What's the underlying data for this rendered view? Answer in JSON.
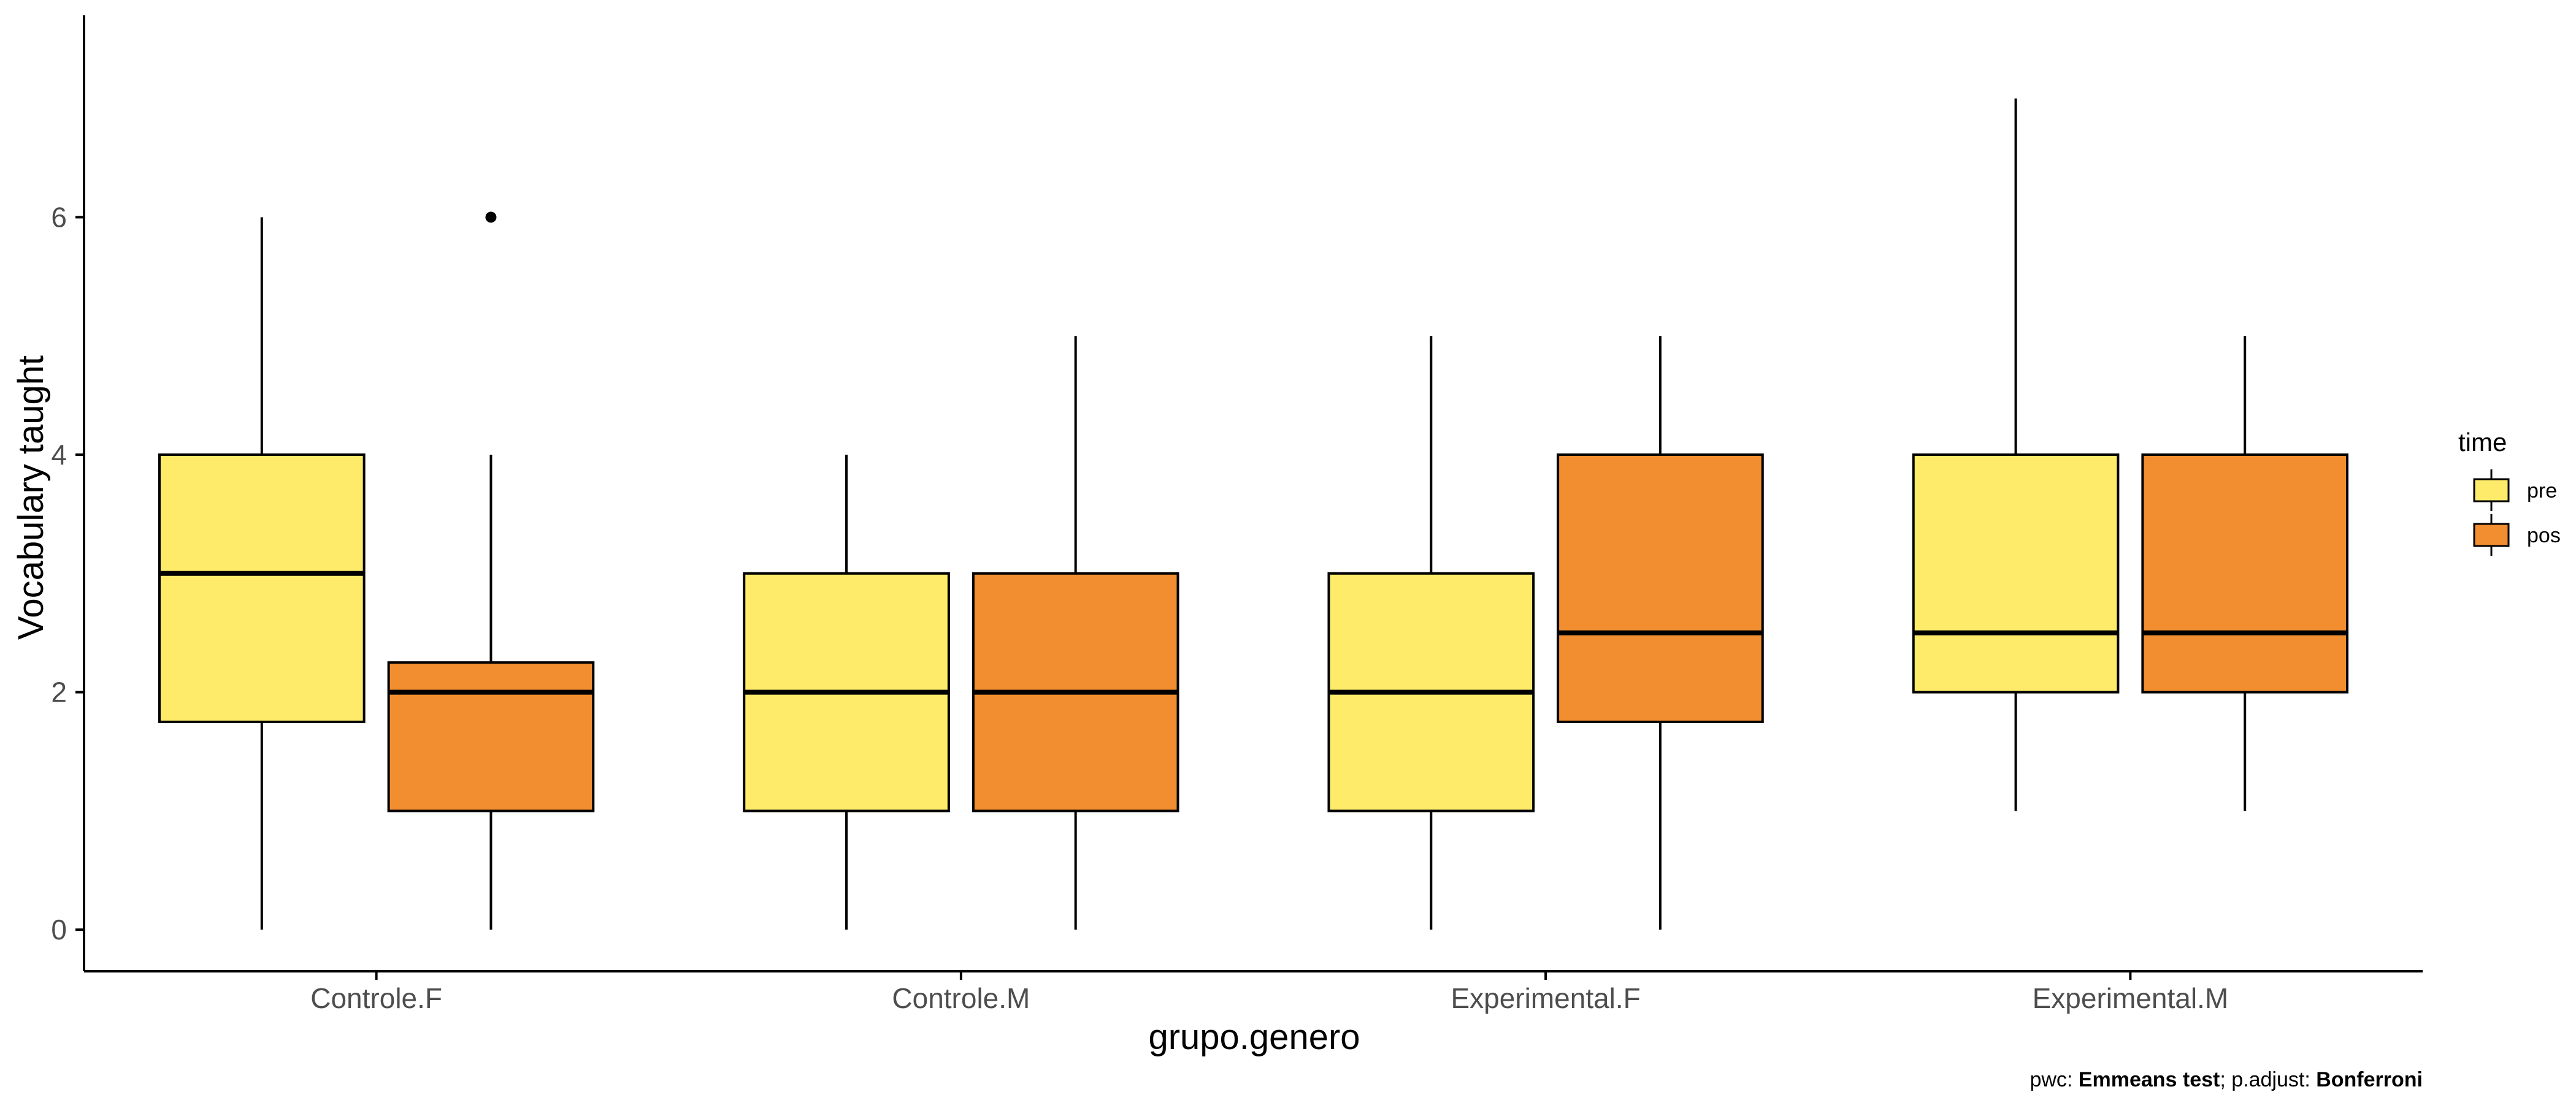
{
  "chart_data": {
    "type": "boxplot",
    "xlabel": "grupo.genero",
    "ylabel": "Vocabulary taught",
    "ylim": [
      -0.35,
      7.7
    ],
    "yticks": [
      0,
      2,
      4,
      6
    ],
    "grid": false,
    "categories": [
      "Controle.F",
      "Controle.M",
      "Experimental.F",
      "Experimental.M"
    ],
    "legend": {
      "title": "time",
      "placement": "right",
      "entries": [
        {
          "name": "pre",
          "color": "#FFEB6A"
        },
        {
          "name": "pos",
          "color": "#F28E2F"
        }
      ]
    },
    "series": [
      {
        "name": "pre",
        "color": "#FFEB6A",
        "boxes": [
          {
            "category": "Controle.F",
            "min": 0,
            "q1": 1.75,
            "median": 3,
            "q3": 4,
            "max": 6,
            "outliers": []
          },
          {
            "category": "Controle.M",
            "min": 0,
            "q1": 1,
            "median": 2,
            "q3": 3,
            "max": 4,
            "outliers": []
          },
          {
            "category": "Experimental.F",
            "min": 0,
            "q1": 1,
            "median": 2,
            "q3": 3,
            "max": 5,
            "outliers": []
          },
          {
            "category": "Experimental.M",
            "min": 1,
            "q1": 2,
            "median": 2.5,
            "q3": 4,
            "max": 7,
            "outliers": []
          }
        ]
      },
      {
        "name": "pos",
        "color": "#F28E2F",
        "boxes": [
          {
            "category": "Controle.F",
            "min": 0,
            "q1": 1,
            "median": 2,
            "q3": 2.25,
            "max": 4,
            "outliers": [
              6
            ]
          },
          {
            "category": "Controle.M",
            "min": 0,
            "q1": 1,
            "median": 2,
            "q3": 3,
            "max": 5,
            "outliers": []
          },
          {
            "category": "Experimental.F",
            "min": 0,
            "q1": 1.75,
            "median": 2.5,
            "q3": 4,
            "max": 5,
            "outliers": []
          },
          {
            "category": "Experimental.M",
            "min": 1,
            "q1": 2,
            "median": 2.5,
            "q3": 4,
            "max": 5,
            "outliers": []
          }
        ]
      }
    ],
    "caption": {
      "prefix1": "pwc: ",
      "bold1": "Emmeans test",
      "prefix2": "; p.adjust: ",
      "bold2": "Bonferroni"
    }
  }
}
